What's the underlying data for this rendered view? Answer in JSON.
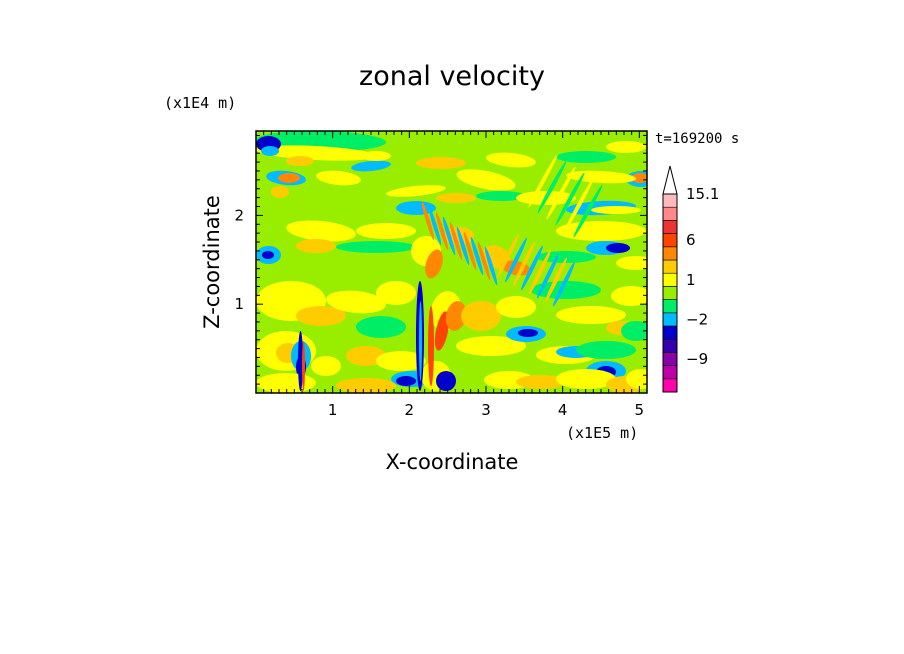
{
  "chart_data": {
    "type": "heatmap",
    "title": "zonal velocity",
    "xlabel": "X-coordinate",
    "ylabel": "Z-coordinate",
    "x_scale_label": "(x1E5 m)",
    "y_scale_label": "(x1E4 m)",
    "time_label": "t=169200 s",
    "xlim": [
      0,
      5.1
    ],
    "ylim": [
      0,
      2.95
    ],
    "x_ticks": [
      "1",
      "2",
      "3",
      "4",
      "5"
    ],
    "y_ticks": [
      "1",
      "2"
    ],
    "colorbar": {
      "levels": [
        -15.1,
        -12,
        -9,
        -6,
        -4,
        -2,
        -1,
        0,
        1,
        2,
        4,
        6,
        9,
        12,
        15.1
      ],
      "colors": [
        "#ff00aa",
        "#bb00aa",
        "#8800aa",
        "#3300aa",
        "#0000cc",
        "#00bbff",
        "#00ee66",
        "#99ee00",
        "#ffff00",
        "#ffcc00",
        "#ff8800",
        "#ff4400",
        "#ee3333",
        "#ff8888",
        "#ffbbbb"
      ],
      "labels": [
        "15.1",
        "6",
        "1",
        "−2",
        "−9"
      ],
      "extend": "max"
    }
  }
}
